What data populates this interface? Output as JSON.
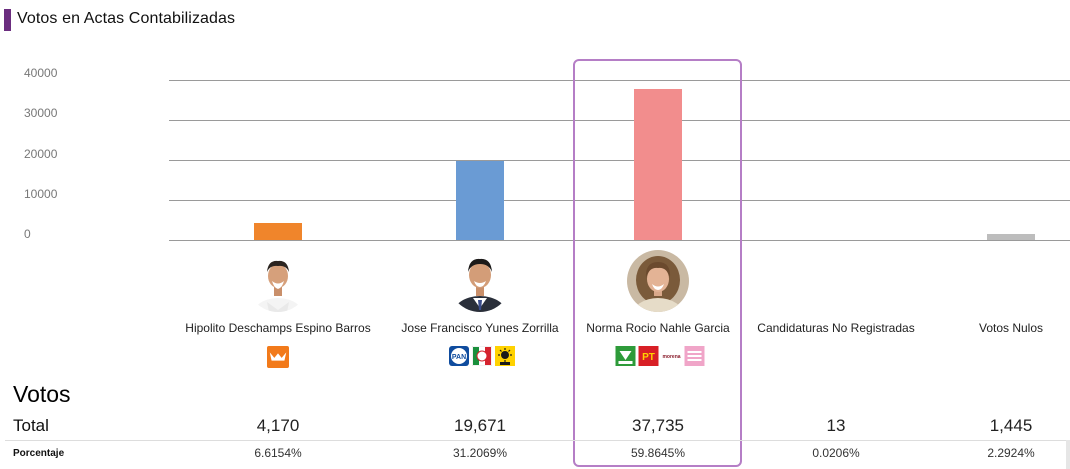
{
  "header": {
    "title": "Votos en Actas Contabilizadas"
  },
  "colors": {
    "accent": "#6b2d7f",
    "highlight_border": "#b57ec6"
  },
  "chart_data": {
    "type": "bar",
    "ylim": [
      0,
      40000
    ],
    "yticks": [
      "40000",
      "30000",
      "20000",
      "10000",
      "0"
    ],
    "grid": true,
    "categories": [
      "Hipolito Deschamps Espino Barros",
      "Jose Francisco Yunes Zorrilla",
      "Norma Rocio Nahle Garcia",
      "Candidaturas No Registradas",
      "Votos Nulos"
    ],
    "values": [
      4170,
      19671,
      37735,
      13,
      1445
    ],
    "colors": [
      "#f0852b",
      "#6a9bd4",
      "#f28d8d",
      "#cccccc",
      "#bdbdbd"
    ],
    "highlighted": "Norma Rocio Nahle Garcia"
  },
  "candidates": [
    {
      "name": "Hipolito Deschamps Espino Barros",
      "logos": [
        "mc-logo"
      ],
      "photo": true
    },
    {
      "name": "Jose Francisco Yunes Zorrilla",
      "logos": [
        "pan-logo",
        "pri-logo",
        "prd-logo"
      ],
      "photo": true
    },
    {
      "name": "Norma Rocio Nahle Garcia",
      "logos": [
        "pvem-logo",
        "pt-logo",
        "morena-logo",
        "fxm-logo"
      ],
      "photo": true
    },
    {
      "name": "Candidaturas No Registradas",
      "logos": [],
      "photo": false
    },
    {
      "name": "Votos Nulos",
      "logos": [],
      "photo": false
    }
  ],
  "logo_text": {
    "pan": "PAN",
    "pt": "PT",
    "morena": "morena"
  },
  "table": {
    "heading": "Votos",
    "total_label": "Total",
    "pct_label": "Porcentaje",
    "totals": [
      "4,170",
      "19,671",
      "37,735",
      "13",
      "1,445"
    ],
    "percentages": [
      "6.6154%",
      "31.2069%",
      "59.8645%",
      "0.0206%",
      "2.2924%"
    ]
  }
}
